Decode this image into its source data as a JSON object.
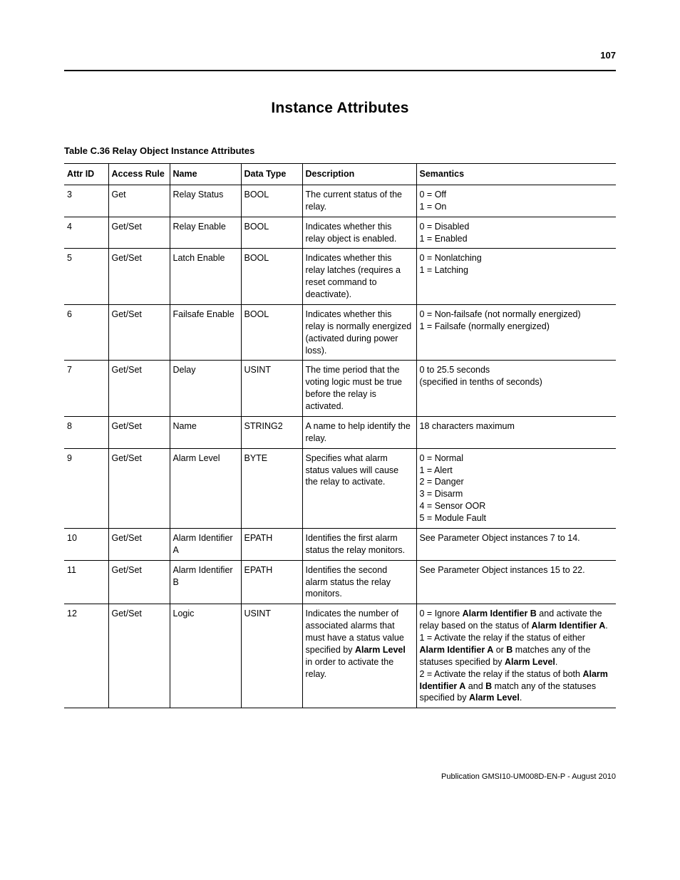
{
  "page_number": "107",
  "section_title": "Instance Attributes",
  "table_caption": "Table C.36 Relay Object Instance Attributes",
  "columns": {
    "attr_id": "Attr ID",
    "access": "Access Rule",
    "name": "Name",
    "dtype": "Data Type",
    "desc": "Description",
    "sem": "Semantics"
  },
  "rows": [
    {
      "attr_id": "3",
      "access": "Get",
      "name": "Relay Status",
      "dtype": "BOOL",
      "desc": "The current status of the relay.",
      "sem": [
        {
          "t": "0 = Off"
        },
        {
          "br": true
        },
        {
          "t": "1 = On"
        }
      ]
    },
    {
      "attr_id": "4",
      "access": "Get/Set",
      "name": "Relay Enable",
      "dtype": "BOOL",
      "desc": "Indicates whether this relay object is enabled.",
      "sem": [
        {
          "t": "0 = Disabled"
        },
        {
          "br": true
        },
        {
          "t": "1 = Enabled"
        }
      ]
    },
    {
      "attr_id": "5",
      "access": "Get/Set",
      "name": "Latch Enable",
      "dtype": "BOOL",
      "desc": "Indicates whether this relay latches (requires a reset command to deactivate).",
      "sem": [
        {
          "t": "0 = Nonlatching"
        },
        {
          "br": true
        },
        {
          "t": "1 = Latching"
        }
      ]
    },
    {
      "attr_id": "6",
      "access": "Get/Set",
      "name": "Failsafe Enable",
      "dtype": "BOOL",
      "desc": "Indicates whether this relay is normally energized (activated during power loss).",
      "sem": [
        {
          "t": "0 = Non-failsafe (not normally energized)"
        },
        {
          "br": true
        },
        {
          "t": "1 = Failsafe (normally energized)"
        }
      ]
    },
    {
      "attr_id": "7",
      "access": "Get/Set",
      "name": "Delay",
      "dtype": "USINT",
      "desc": "The time period that the voting logic must be true before the relay is activated.",
      "sem": [
        {
          "t": "0 to 25.5 seconds"
        },
        {
          "br": true
        },
        {
          "t": "(specified in tenths of seconds)"
        }
      ]
    },
    {
      "attr_id": "8",
      "access": "Get/Set",
      "name": "Name",
      "dtype": "STRING2",
      "desc": "A name to help identify the relay.",
      "sem": [
        {
          "t": "18 characters maximum"
        }
      ]
    },
    {
      "attr_id": "9",
      "access": "Get/Set",
      "name": "Alarm Level",
      "dtype": "BYTE",
      "desc": "Specifies what alarm status values will cause the relay to activate.",
      "sem": [
        {
          "t": "0 = Normal"
        },
        {
          "br": true
        },
        {
          "t": "1 = Alert"
        },
        {
          "br": true
        },
        {
          "t": "2 = Danger"
        },
        {
          "br": true
        },
        {
          "t": "3 = Disarm"
        },
        {
          "br": true
        },
        {
          "t": "4 = Sensor OOR"
        },
        {
          "br": true
        },
        {
          "t": "5 = Module Fault"
        }
      ]
    },
    {
      "attr_id": "10",
      "access": "Get/Set",
      "name": "Alarm Identifier A",
      "dtype": "EPATH",
      "desc": "Identifies the first alarm status the relay monitors.",
      "sem": [
        {
          "t": "See Parameter Object instances 7 to 14."
        }
      ]
    },
    {
      "attr_id": "11",
      "access": "Get/Set",
      "name": "Alarm Identifier B",
      "dtype": "EPATH",
      "desc": "Identifies the second alarm status the relay monitors.",
      "sem": [
        {
          "t": "See Parameter Object instances 15 to 22."
        }
      ]
    },
    {
      "attr_id": "12",
      "access": "Get/Set",
      "name": "Logic",
      "dtype": "USINT",
      "desc_rich": [
        {
          "t": "Indicates the number of associated alarms that must have a status value specified by "
        },
        {
          "t": "Alarm Level",
          "b": true
        },
        {
          "t": " in order to activate the relay."
        }
      ],
      "sem": [
        {
          "t": "0 = Ignore "
        },
        {
          "t": "Alarm Identifier B",
          "b": true
        },
        {
          "t": " and activate the relay based on the status of "
        },
        {
          "t": "Alarm Identifier A",
          "b": true
        },
        {
          "t": "."
        },
        {
          "br": true
        },
        {
          "t": "1 = Activate the relay if the status of either "
        },
        {
          "t": "Alarm Identifier A",
          "b": true
        },
        {
          "t": " or "
        },
        {
          "t": "B",
          "b": true
        },
        {
          "t": " matches any of the statuses specified by "
        },
        {
          "t": "Alarm Level",
          "b": true
        },
        {
          "t": "."
        },
        {
          "br": true
        },
        {
          "t": "2 = Activate the relay if the status of both "
        },
        {
          "t": "Alarm Identifier A",
          "b": true
        },
        {
          "t": " and "
        },
        {
          "t": "B",
          "b": true
        },
        {
          "t": " match any of the statuses specified by "
        },
        {
          "t": "Alarm Level",
          "b": true
        },
        {
          "t": "."
        }
      ]
    }
  ],
  "footer": "Publication GMSI10-UM008D-EN-P - August 2010"
}
